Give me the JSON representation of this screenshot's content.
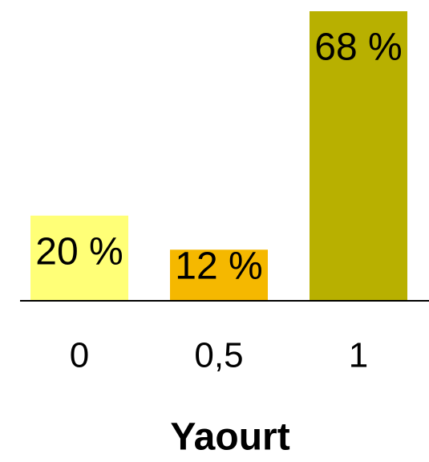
{
  "chart_data": {
    "type": "bar",
    "x_label": "Yaourt",
    "categories": [
      "0",
      "0,5",
      "1"
    ],
    "values": [
      20,
      12,
      68
    ],
    "value_labels": [
      "20 %",
      "12 %",
      "68 %"
    ],
    "colors": [
      "#ffff77",
      "#f5b800",
      "#b8b000"
    ],
    "ylim": [
      0,
      68
    ]
  }
}
